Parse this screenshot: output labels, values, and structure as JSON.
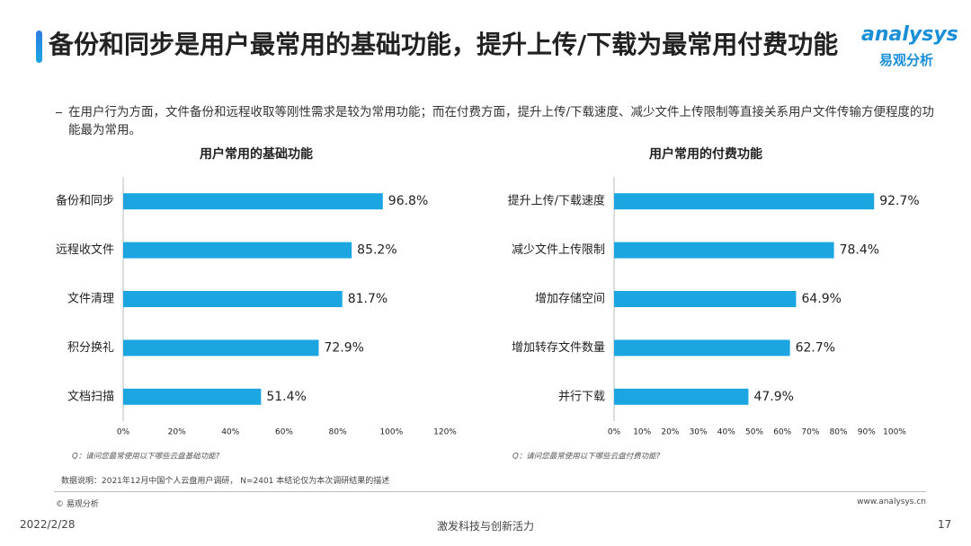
{
  "header": {
    "title": "备份和同步是用户最常用的基础功能，提升上传/下载为最常用付费功能",
    "subtitle": "在用户行为方面，文件备份和远程收取等刚性需求是较为常用功能；而在付费方面，提升上传/下载速度、减少文件上传限制等直接关系用户文件传输方便程度的功能最为常用。"
  },
  "logo": {
    "brand": "analysys",
    "name": "易观分析"
  },
  "chart_data": [
    {
      "type": "bar",
      "orientation": "horizontal",
      "title": "用户常用的基础功能",
      "note": "Q：请问您最常使用以下哪些云盘基础功能?",
      "color": "#1ba6e1",
      "categories": [
        "备份和同步",
        "远程收文件",
        "文件清理",
        "积分换礼",
        "文档扫描"
      ],
      "values": [
        96.8,
        85.2,
        81.7,
        72.9,
        51.4
      ],
      "value_labels": [
        "96.8%",
        "85.2%",
        "81.7%",
        "72.9%",
        "51.4%"
      ],
      "xlim": [
        0,
        120
      ],
      "xticks": [
        {
          "value": 0,
          "label": "0%"
        },
        {
          "value": 20,
          "label": "20%"
        },
        {
          "value": 40,
          "label": "40%"
        },
        {
          "value": 60,
          "label": "60%"
        },
        {
          "value": 80,
          "label": "80%"
        },
        {
          "value": 100,
          "label": "100%"
        },
        {
          "value": 120,
          "label": "120%"
        }
      ]
    },
    {
      "type": "bar",
      "orientation": "horizontal",
      "title": "用户常用的付费功能",
      "note": "Q：请问您最常使用以下哪些云盘付费功能?",
      "color": "#1ba6e1",
      "categories": [
        "提升上传/下载速度",
        "减少文件上传限制",
        "增加存储空间",
        "增加转存文件数量",
        "并行下载"
      ],
      "values": [
        92.7,
        78.4,
        64.9,
        62.7,
        47.9
      ],
      "value_labels": [
        "92.7%",
        "78.4%",
        "64.9%",
        "62.7%",
        "47.9%"
      ],
      "xlim": [
        0,
        100
      ],
      "xticks": [
        {
          "value": 0,
          "label": "0%"
        },
        {
          "value": 10,
          "label": "10%"
        },
        {
          "value": 20,
          "label": "20%"
        },
        {
          "value": 30,
          "label": "30%"
        },
        {
          "value": 40,
          "label": "40%"
        },
        {
          "value": 50,
          "label": "50%"
        },
        {
          "value": 60,
          "label": "60%"
        },
        {
          "value": 70,
          "label": "70%"
        },
        {
          "value": 80,
          "label": "80%"
        },
        {
          "value": 90,
          "label": "90%"
        },
        {
          "value": 100,
          "label": "100%"
        }
      ]
    }
  ],
  "footer": {
    "source": "数据说明：2021年12月中国个人云盘用户调研， N=2401  本结论仅为本次调研结果的描述",
    "copyright": "© 易观分析",
    "website": "www.analysys.cn",
    "date": "2022/2/28",
    "slogan": "激发科技与创新活力",
    "page": "17"
  }
}
